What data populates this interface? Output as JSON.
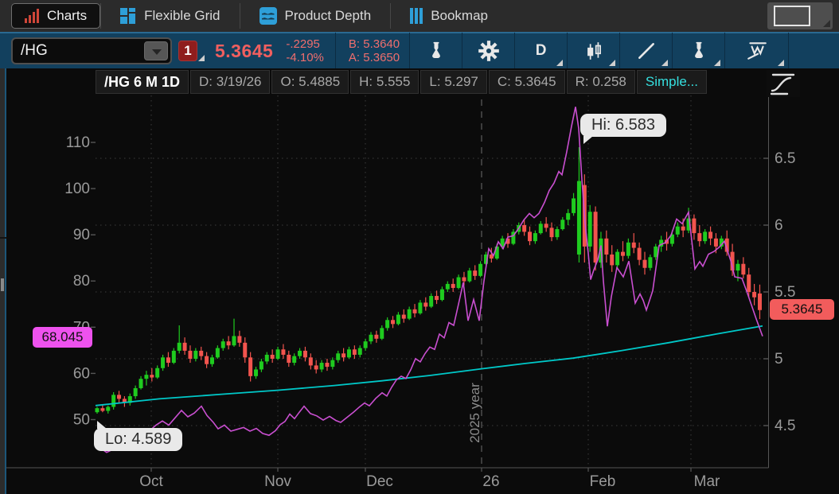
{
  "tabs": [
    {
      "label": "Charts"
    },
    {
      "label": "Flexible Grid"
    },
    {
      "label": "Product Depth"
    },
    {
      "label": "Bookmap"
    }
  ],
  "toolbar": {
    "symbol": "/HG",
    "alert_badge": "1",
    "last_price": "5.3645",
    "change": "-.2295",
    "change_pct": "-4.10%",
    "bid": "B: 5.3640",
    "ask": "A: 5.3650",
    "timeframe": "D"
  },
  "ohlc_bar": {
    "title": "/HG 6 M 1D",
    "date": "D: 3/19/26",
    "open": "O: 5.4885",
    "high": "H: 5.555",
    "low": "L: 5.297",
    "close": "C: 5.3645",
    "range": "R: 0.258",
    "study": "Simple..."
  },
  "chart_data": {
    "type": "candlestick",
    "title": "/HG 6 M 1D",
    "legend_position": "top-left",
    "grid": "dotted",
    "right_axis": {
      "tick_labels": [
        "6.5",
        "6",
        "5.5",
        "5",
        "4.5"
      ],
      "tick_values": [
        6.5,
        6,
        5.5,
        5,
        4.5
      ],
      "range": [
        4.2,
        6.75
      ]
    },
    "left_axis": {
      "tick_labels": [
        "110",
        "100",
        "90",
        "80",
        "70",
        "60",
        "50"
      ],
      "tick_values": [
        110,
        100,
        90,
        80,
        70,
        60,
        50
      ],
      "range": [
        41,
        118
      ]
    },
    "x_axis": {
      "labels": [
        "Oct",
        "Nov",
        "Dec",
        "26",
        "Feb",
        "Mar"
      ]
    },
    "annotations": {
      "high_label": "Hi: 6.583",
      "low_label": "Lo: 4.589",
      "year_label": "2025 year",
      "last_price_label": "5.3645",
      "comparison_label": "68.045"
    },
    "colors": {
      "up": "#1fcb1f",
      "down": "#f2544e",
      "comparison_line": "#c94fd0",
      "sma_line": "#00c8c8",
      "last_label_bg": "#f25c5c",
      "comparison_label_bg": "#ee52ee",
      "grid": "#3c3c3c",
      "axis": "#565656",
      "tick_text": "#9a9a9a"
    },
    "candles": [
      [
        4.6,
        4.64,
        4.589,
        4.63
      ],
      [
        4.63,
        4.66,
        4.6,
        4.61
      ],
      [
        4.61,
        4.65,
        4.59,
        4.64
      ],
      [
        4.64,
        4.75,
        4.62,
        4.73
      ],
      [
        4.73,
        4.76,
        4.67,
        4.7
      ],
      [
        4.7,
        4.72,
        4.64,
        4.67
      ],
      [
        4.67,
        4.74,
        4.65,
        4.72
      ],
      [
        4.72,
        4.8,
        4.7,
        4.78
      ],
      [
        4.78,
        4.87,
        4.77,
        4.85
      ],
      [
        4.85,
        4.91,
        4.8,
        4.88
      ],
      [
        4.88,
        4.93,
        4.83,
        4.86
      ],
      [
        4.86,
        4.95,
        4.85,
        4.93
      ],
      [
        4.93,
        5.03,
        4.91,
        5.01
      ],
      [
        5.01,
        5.05,
        4.94,
        4.97
      ],
      [
        4.97,
        5.08,
        4.96,
        5.06
      ],
      [
        5.06,
        5.25,
        5.04,
        5.12
      ],
      [
        5.12,
        5.16,
        5.03,
        5.06
      ],
      [
        5.06,
        5.1,
        4.97,
        5.0
      ],
      [
        5.0,
        5.08,
        4.98,
        5.06
      ],
      [
        5.06,
        5.09,
        4.99,
        5.02
      ],
      [
        5.02,
        5.05,
        4.93,
        4.96
      ],
      [
        4.96,
        5.03,
        4.94,
        5.01
      ],
      [
        5.01,
        5.1,
        5.0,
        5.08
      ],
      [
        5.08,
        5.15,
        5.06,
        5.13
      ],
      [
        5.13,
        5.17,
        5.07,
        5.1
      ],
      [
        5.1,
        5.3,
        5.09,
        5.17
      ],
      [
        5.17,
        5.21,
        5.09,
        5.12
      ],
      [
        5.12,
        5.16,
        4.97,
        5.01
      ],
      [
        5.01,
        5.05,
        4.83,
        4.87
      ],
      [
        4.87,
        4.94,
        4.85,
        4.92
      ],
      [
        4.92,
        5.0,
        4.9,
        4.98
      ],
      [
        4.98,
        5.05,
        4.96,
        5.03
      ],
      [
        5.03,
        5.07,
        4.97,
        5.0
      ],
      [
        5.0,
        5.09,
        4.99,
        5.07
      ],
      [
        5.07,
        5.11,
        5.0,
        5.03
      ],
      [
        5.03,
        5.06,
        4.94,
        4.97
      ],
      [
        4.97,
        5.04,
        4.95,
        5.02
      ],
      [
        5.02,
        5.08,
        5.0,
        5.06
      ],
      [
        5.06,
        5.09,
        4.98,
        5.01
      ],
      [
        5.01,
        5.04,
        4.92,
        4.95
      ],
      [
        4.95,
        4.99,
        4.89,
        4.92
      ],
      [
        4.92,
        4.99,
        4.9,
        4.97
      ],
      [
        4.97,
        5.0,
        4.91,
        4.94
      ],
      [
        4.94,
        5.01,
        4.92,
        4.99
      ],
      [
        4.99,
        5.06,
        4.97,
        5.04
      ],
      [
        5.04,
        5.08,
        4.98,
        5.01
      ],
      [
        5.01,
        5.09,
        5.0,
        5.07
      ],
      [
        5.07,
        5.1,
        5.0,
        5.03
      ],
      [
        5.03,
        5.1,
        5.01,
        5.08
      ],
      [
        5.08,
        5.15,
        5.06,
        5.13
      ],
      [
        5.13,
        5.2,
        5.11,
        5.18
      ],
      [
        5.18,
        5.21,
        5.12,
        5.15
      ],
      [
        5.15,
        5.25,
        5.14,
        5.23
      ],
      [
        5.23,
        5.31,
        5.21,
        5.29
      ],
      [
        5.29,
        5.32,
        5.23,
        5.26
      ],
      [
        5.26,
        5.35,
        5.25,
        5.33
      ],
      [
        5.33,
        5.37,
        5.27,
        5.3
      ],
      [
        5.3,
        5.39,
        5.29,
        5.37
      ],
      [
        5.37,
        5.41,
        5.31,
        5.34
      ],
      [
        5.34,
        5.44,
        5.33,
        5.42
      ],
      [
        5.42,
        5.46,
        5.36,
        5.39
      ],
      [
        5.39,
        5.49,
        5.38,
        5.47
      ],
      [
        5.47,
        5.51,
        5.41,
        5.44
      ],
      [
        5.44,
        5.54,
        5.43,
        5.52
      ],
      [
        5.52,
        5.58,
        5.5,
        5.56
      ],
      [
        5.56,
        5.6,
        5.5,
        5.53
      ],
      [
        5.53,
        5.63,
        5.52,
        5.61
      ],
      [
        5.61,
        5.65,
        5.55,
        5.58
      ],
      [
        5.58,
        5.68,
        5.57,
        5.66
      ],
      [
        5.66,
        5.7,
        5.59,
        5.62
      ],
      [
        5.62,
        5.73,
        5.61,
        5.71
      ],
      [
        5.71,
        5.8,
        5.7,
        5.78
      ],
      [
        5.78,
        5.83,
        5.72,
        5.75
      ],
      [
        5.75,
        5.86,
        5.74,
        5.84
      ],
      [
        5.84,
        5.92,
        5.82,
        5.9
      ],
      [
        5.9,
        5.94,
        5.83,
        5.86
      ],
      [
        5.86,
        5.97,
        5.85,
        5.95
      ],
      [
        5.95,
        6.02,
        5.93,
        6.0
      ],
      [
        6.0,
        6.04,
        5.92,
        5.95
      ],
      [
        5.95,
        5.99,
        5.85,
        5.88
      ],
      [
        5.88,
        5.96,
        5.86,
        5.94
      ],
      [
        5.94,
        6.03,
        5.93,
        6.01
      ],
      [
        6.01,
        6.06,
        5.95,
        5.98
      ],
      [
        5.98,
        6.02,
        5.88,
        5.91
      ],
      [
        5.91,
        5.99,
        5.89,
        5.97
      ],
      [
        5.97,
        6.06,
        5.96,
        6.04
      ],
      [
        6.04,
        6.12,
        6.0,
        6.09
      ],
      [
        6.09,
        6.24,
        6.07,
        6.2
      ],
      [
        5.78,
        6.583,
        5.72,
        6.33
      ],
      [
        6.3,
        6.38,
        5.72,
        5.84
      ],
      [
        5.84,
        6.15,
        5.8,
        6.1
      ],
      [
        6.1,
        6.14,
        5.66,
        5.72
      ],
      [
        5.72,
        5.95,
        5.68,
        5.9
      ],
      [
        5.9,
        5.96,
        5.72,
        5.78
      ],
      [
        5.78,
        5.85,
        5.65,
        5.7
      ],
      [
        5.7,
        5.82,
        5.67,
        5.8
      ],
      [
        5.8,
        5.88,
        5.73,
        5.77
      ],
      [
        5.77,
        5.9,
        5.75,
        5.87
      ],
      [
        5.87,
        5.94,
        5.79,
        5.83
      ],
      [
        5.83,
        5.87,
        5.7,
        5.74
      ],
      [
        5.74,
        5.8,
        5.63,
        5.68
      ],
      [
        5.68,
        5.78,
        5.66,
        5.76
      ],
      [
        5.76,
        5.86,
        5.74,
        5.84
      ],
      [
        5.84,
        5.92,
        5.8,
        5.89
      ],
      [
        5.89,
        5.95,
        5.81,
        5.86
      ],
      [
        5.86,
        5.96,
        5.84,
        5.93
      ],
      [
        5.93,
        6.02,
        5.91,
        5.99
      ],
      [
        5.99,
        6.05,
        5.91,
        5.96
      ],
      [
        5.96,
        6.13,
        5.94,
        6.05
      ],
      [
        6.05,
        6.08,
        5.89,
        5.94
      ],
      [
        5.94,
        6.0,
        5.84,
        5.88
      ],
      [
        5.88,
        5.97,
        5.86,
        5.95
      ],
      [
        5.95,
        5.99,
        5.85,
        5.9
      ],
      [
        5.9,
        5.94,
        5.79,
        5.84
      ],
      [
        5.84,
        5.92,
        5.82,
        5.9
      ],
      [
        5.9,
        5.96,
        5.77,
        5.8
      ],
      [
        5.8,
        5.86,
        5.62,
        5.66
      ],
      [
        5.66,
        5.74,
        5.58,
        5.71
      ],
      [
        5.71,
        5.76,
        5.6,
        5.63
      ],
      [
        5.63,
        5.68,
        5.46,
        5.5
      ],
      [
        5.5,
        5.56,
        5.4,
        5.46
      ],
      [
        5.4885,
        5.555,
        5.297,
        5.3645
      ]
    ],
    "comparison_line_points": [
      [
        122,
        44
      ],
      [
        128,
        43.6
      ],
      [
        134,
        42.9
      ],
      [
        140,
        43.4
      ],
      [
        147,
        44.3
      ],
      [
        154,
        43.8
      ],
      [
        160,
        44.6
      ],
      [
        166,
        44.2
      ],
      [
        172,
        45.3
      ],
      [
        180,
        46.2
      ],
      [
        188,
        47.6
      ],
      [
        196,
        48.8
      ],
      [
        204,
        49.7
      ],
      [
        212,
        48.8
      ],
      [
        220,
        50.4
      ],
      [
        228,
        52
      ],
      [
        236,
        50.6
      ],
      [
        244,
        51.4
      ],
      [
        253,
        52.9
      ],
      [
        260,
        50.9
      ],
      [
        268,
        49.4
      ],
      [
        274,
        48
      ],
      [
        282,
        48.8
      ],
      [
        290,
        47.5
      ],
      [
        298,
        47.9
      ],
      [
        306,
        48.3
      ],
      [
        314,
        47.5
      ],
      [
        322,
        48.1
      ],
      [
        330,
        47
      ],
      [
        338,
        46.6
      ],
      [
        346,
        47.6
      ],
      [
        352,
        48.9
      ],
      [
        358,
        49.6
      ],
      [
        364,
        51.2
      ],
      [
        370,
        50.2
      ],
      [
        376,
        51.6
      ],
      [
        382,
        52.9
      ],
      [
        390,
        51.3
      ],
      [
        398,
        50.8
      ],
      [
        406,
        49.9
      ],
      [
        414,
        50.7
      ],
      [
        422,
        49.8
      ],
      [
        428,
        49.4
      ],
      [
        436,
        50.5
      ],
      [
        444,
        51.6
      ],
      [
        452,
        52.8
      ],
      [
        458,
        53.6
      ],
      [
        464,
        53
      ],
      [
        472,
        54.6
      ],
      [
        480,
        55.8
      ],
      [
        486,
        55.1
      ],
      [
        492,
        57
      ],
      [
        498,
        58.6
      ],
      [
        504,
        59.4
      ],
      [
        510,
        58.9
      ],
      [
        516,
        60.8
      ],
      [
        522,
        63.2
      ],
      [
        528,
        62.5
      ],
      [
        534,
        64.3
      ],
      [
        540,
        65.7
      ],
      [
        546,
        65.2
      ],
      [
        552,
        68.5
      ],
      [
        558,
        67.7
      ],
      [
        564,
        71
      ],
      [
        570,
        70.4
      ],
      [
        576,
        75
      ],
      [
        582,
        79.7
      ],
      [
        588,
        71.4
      ],
      [
        595,
        76
      ],
      [
        602,
        71.4
      ],
      [
        608,
        80
      ],
      [
        614,
        87
      ],
      [
        620,
        85.5
      ],
      [
        626,
        88.5
      ],
      [
        632,
        87
      ],
      [
        638,
        89.5
      ],
      [
        645,
        89.8
      ],
      [
        652,
        91.5
      ],
      [
        658,
        93.2
      ],
      [
        665,
        94.6
      ],
      [
        671,
        93.7
      ],
      [
        677,
        94.6
      ],
      [
        684,
        97
      ],
      [
        690,
        99.6
      ],
      [
        696,
        101.2
      ],
      [
        702,
        103.7
      ],
      [
        706,
        103
      ],
      [
        712,
        108
      ],
      [
        718,
        113.5
      ],
      [
        723,
        117.7
      ],
      [
        727,
        113
      ],
      [
        731,
        102
      ],
      [
        735,
        92.5
      ],
      [
        739,
        86
      ],
      [
        742,
        80.3
      ],
      [
        746,
        82.4
      ],
      [
        751,
        84.6
      ],
      [
        755,
        87.7
      ],
      [
        758,
        80
      ],
      [
        763,
        70.2
      ],
      [
        768,
        76.6
      ],
      [
        775,
        82.9
      ],
      [
        783,
        80.9
      ],
      [
        790,
        84.3
      ],
      [
        798,
        75.2
      ],
      [
        804,
        77.2
      ],
      [
        808,
        75.8
      ],
      [
        812,
        73.7
      ],
      [
        820,
        77.9
      ],
      [
        828,
        87.7
      ],
      [
        836,
        88.3
      ],
      [
        843,
        89.9
      ],
      [
        850,
        93.4
      ],
      [
        857,
        92.4
      ],
      [
        865,
        94.9
      ],
      [
        873,
        82.6
      ],
      [
        879,
        84.2
      ],
      [
        883,
        83.2
      ],
      [
        890,
        85.8
      ],
      [
        897,
        86.4
      ],
      [
        904,
        87.4
      ],
      [
        910,
        88.6
      ],
      [
        918,
        84.4
      ],
      [
        923,
        80.9
      ],
      [
        932,
        80.6
      ],
      [
        938,
        77.8
      ],
      [
        944,
        74.8
      ],
      [
        950,
        71.8
      ],
      [
        958,
        68.045
      ]
    ],
    "sma_points": [
      [
        120,
        4.65
      ],
      [
        200,
        4.7
      ],
      [
        280,
        4.735
      ],
      [
        350,
        4.765
      ],
      [
        420,
        4.8
      ],
      [
        480,
        4.835
      ],
      [
        540,
        4.875
      ],
      [
        605,
        4.925
      ],
      [
        660,
        4.965
      ],
      [
        720,
        5.005
      ],
      [
        780,
        5.06
      ],
      [
        840,
        5.12
      ],
      [
        900,
        5.185
      ],
      [
        958,
        5.245
      ]
    ]
  }
}
